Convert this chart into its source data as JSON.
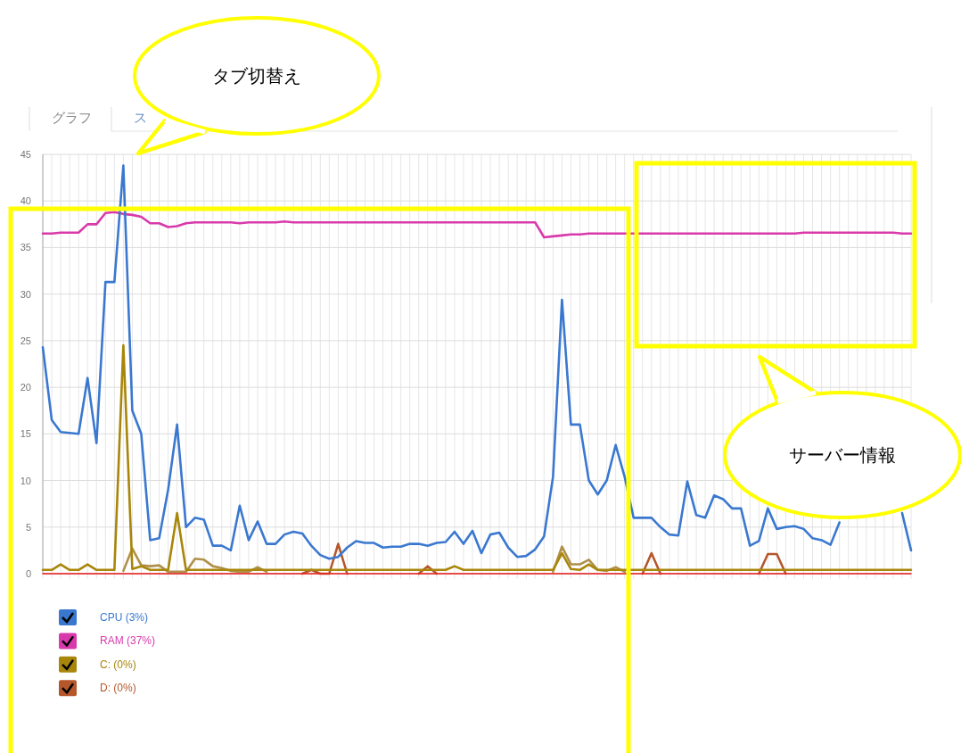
{
  "chart_data": {
    "type": "line",
    "categories": [
      null,
      null,
      null,
      null,
      null,
      null,
      null,
      null,
      null,
      null,
      null,
      null,
      null,
      null,
      null,
      null,
      null,
      null,
      null,
      null,
      null,
      null,
      null,
      null,
      null,
      null,
      null,
      null,
      null,
      null,
      null,
      null,
      null,
      null,
      null,
      null,
      null,
      null,
      null,
      null,
      null,
      null,
      null,
      null,
      null,
      null,
      null,
      null,
      null,
      null,
      null,
      null,
      null,
      null,
      null,
      null,
      null,
      null,
      null,
      null,
      null,
      null,
      null,
      null,
      null,
      null,
      null,
      null,
      null,
      null,
      null,
      null,
      null,
      null,
      null,
      null,
      null,
      null,
      null,
      null,
      null,
      null,
      null,
      null,
      null,
      null,
      null,
      null,
      null,
      null,
      null,
      null,
      null,
      null,
      null,
      null,
      null,
      null
    ],
    "series": [
      {
        "name": "CPU (3%)",
        "color": "#3a78d0",
        "values": [
          24.3,
          16.5,
          15.2,
          15.1,
          15.0,
          21,
          14,
          31.3,
          31.3,
          43.8,
          17.5,
          15,
          3.6,
          3.8,
          9,
          16,
          5,
          6,
          5.8,
          3,
          3,
          2.5,
          7.3,
          3.6,
          5.6,
          3.2,
          3.2,
          4.2,
          4.5,
          4.3,
          3,
          2,
          1.6,
          1.8,
          2.8,
          3.5,
          3.3,
          3.3,
          2.8,
          2.9,
          2.9,
          3.2,
          3.2,
          3,
          3.3,
          3.4,
          4.5,
          3.2,
          4.6,
          2.2,
          4.2,
          4.4,
          2.8,
          1.8,
          1.9,
          2.6,
          4,
          10.4,
          29.4,
          16,
          16,
          10,
          8.5,
          10,
          13.8,
          10.4,
          6,
          6,
          6,
          5,
          4.2,
          4.1,
          9.9,
          6.3,
          6,
          8.4,
          8,
          7,
          7,
          3,
          3.5,
          7,
          4.8,
          5,
          5.1,
          4.8,
          3.8,
          3.6,
          3.1,
          5.5,
          null,
          null,
          null,
          null,
          null,
          null,
          6.5,
          2.5
        ]
      },
      {
        "name": "RAM (37%)",
        "color": "#d93aab",
        "values": [
          36.5,
          36.5,
          36.6,
          36.6,
          36.6,
          37.5,
          37.5,
          38.7,
          38.8,
          38.6,
          38.5,
          38.3,
          37.6,
          37.6,
          37.2,
          37.3,
          37.6,
          37.7,
          37.7,
          37.7,
          37.7,
          37.7,
          37.6,
          37.7,
          37.7,
          37.7,
          37.7,
          37.8,
          37.7,
          37.7,
          37.7,
          37.7,
          37.7,
          37.7,
          37.7,
          37.7,
          37.7,
          37.7,
          37.7,
          37.7,
          37.7,
          37.7,
          37.7,
          37.7,
          37.7,
          37.7,
          37.7,
          37.7,
          37.7,
          37.7,
          37.7,
          37.7,
          37.7,
          37.7,
          37.7,
          37.7,
          36.1,
          36.2,
          36.3,
          36.4,
          36.4,
          36.5,
          36.5,
          36.5,
          36.5,
          36.5,
          36.5,
          36.5,
          36.5,
          36.5,
          36.5,
          36.5,
          36.5,
          36.5,
          36.5,
          36.5,
          36.5,
          36.5,
          36.5,
          36.5,
          36.5,
          36.5,
          36.5,
          36.5,
          36.5,
          36.6,
          36.6,
          36.6,
          36.6,
          36.6,
          36.6,
          36.6,
          36.6,
          36.6,
          36.6,
          36.6,
          36.5,
          36.5
        ]
      },
      {
        "name": "C: (0%)",
        "color": "#a8860a",
        "values": [
          0.4,
          0.4,
          1,
          0.4,
          0.4,
          1,
          0.4,
          0.4,
          0.4,
          24.5,
          0.5,
          0.8,
          0.4,
          0.4,
          0.4,
          6.5,
          0.4,
          0.4,
          0.4,
          0.4,
          0.4,
          0.4,
          0.4,
          0.4,
          0.4,
          0.4,
          0.4,
          0.4,
          0.4,
          0.4,
          0.4,
          0.4,
          0.4,
          0.4,
          0.4,
          0.4,
          0.4,
          0.4,
          0.4,
          0.4,
          0.4,
          0.4,
          0.4,
          0.4,
          0.4,
          0.4,
          0.8,
          0.4,
          0.4,
          0.4,
          0.4,
          0.4,
          0.4,
          0.4,
          0.4,
          0.4,
          0.4,
          0.4,
          2.2,
          0.5,
          0.4,
          1,
          0.4,
          0.4,
          0.4,
          0.4,
          0.4,
          0.4,
          0.4,
          0.4,
          0.4,
          0.4,
          0.4,
          0.4,
          0.4,
          0.4,
          0.4,
          0.4,
          0.4,
          0.4,
          0.4,
          0.4,
          0.4,
          0.4,
          0.4,
          0.4,
          0.4,
          0.4,
          0.4,
          0.4,
          0.4,
          0.4,
          0.4,
          0.4,
          0.4,
          0.4,
          0.4,
          0.4
        ]
      },
      {
        "name": "D: (0%)",
        "color": "#b5572b",
        "values": [
          null,
          null,
          null,
          null,
          null,
          null,
          null,
          null,
          null,
          null,
          null,
          null,
          null,
          null,
          null,
          null,
          null,
          null,
          null,
          null,
          null,
          null,
          null,
          null,
          null,
          null,
          null,
          null,
          null,
          0,
          0.4,
          0,
          0,
          3.2,
          0,
          null,
          null,
          null,
          null,
          null,
          null,
          null,
          0,
          0.8,
          0,
          null,
          null,
          null,
          null,
          null,
          null,
          null,
          null,
          null,
          null,
          null,
          null,
          null,
          null,
          null,
          null,
          null,
          null,
          null,
          null,
          null,
          null,
          0,
          2.2,
          0,
          null,
          null,
          null,
          null,
          null,
          null,
          null,
          null,
          null,
          null,
          0,
          2.1,
          2.1,
          0,
          null,
          null,
          null,
          null,
          null,
          null,
          null,
          null,
          null,
          null,
          null,
          null,
          null,
          null
        ]
      },
      {
        "color": "#f02020",
        "values": [
          0,
          0,
          0,
          0,
          0,
          0,
          0,
          0,
          0,
          0,
          0,
          0,
          0,
          0,
          0,
          0,
          0,
          0,
          0,
          0,
          0,
          0,
          0,
          0,
          0,
          0,
          0,
          0,
          0,
          0,
          0,
          0,
          0,
          0,
          0,
          0,
          0,
          0,
          0,
          0,
          0,
          0,
          0,
          0,
          0,
          0,
          0,
          0,
          0,
          0,
          0,
          0,
          0,
          0,
          0,
          0,
          0,
          0,
          0,
          0,
          0,
          0,
          0,
          0,
          0,
          0,
          0,
          0,
          0,
          0,
          0,
          0,
          0,
          0,
          0,
          0,
          0,
          0,
          0,
          0,
          0,
          0,
          0,
          0,
          0,
          0,
          0,
          0,
          0,
          0,
          0,
          0,
          0,
          0,
          0,
          0,
          0,
          0
        ]
      },
      {
        "color": "#b0904a",
        "values": [
          null,
          null,
          null,
          null,
          null,
          null,
          null,
          null,
          null,
          0.3,
          2.7,
          0.9,
          0.8,
          0.9,
          0.2,
          0.2,
          0.2,
          1.6,
          1.5,
          0.8,
          0.6,
          0.3,
          0.2,
          0.2,
          0.7,
          0.2,
          null,
          null,
          null,
          null,
          null,
          null,
          null,
          null,
          null,
          null,
          null,
          null,
          null,
          null,
          null,
          null,
          null,
          null,
          null,
          null,
          null,
          null,
          null,
          null,
          null,
          null,
          null,
          null,
          null,
          null,
          null,
          0.2,
          2.9,
          1.0,
          1.0,
          1.5,
          0.4,
          0.3,
          0.7,
          0.2,
          null,
          null,
          null,
          null,
          null,
          null,
          null,
          null,
          null,
          null,
          null,
          null,
          null,
          null,
          null,
          null,
          null,
          null,
          null,
          null,
          null,
          null,
          null,
          null,
          null,
          null,
          null,
          null,
          null,
          null,
          null,
          null
        ]
      }
    ],
    "ylim": [
      0,
      45
    ],
    "yticks": [
      0,
      5,
      10,
      15,
      20,
      25,
      30,
      35,
      40,
      45
    ],
    "grid": true,
    "legend": "bottom",
    "marker": "none",
    "line_style": "solid",
    "annotations": [
      "グラフ",
      "ス",
      "タブ切替え",
      "サーバー情報"
    ]
  }
}
